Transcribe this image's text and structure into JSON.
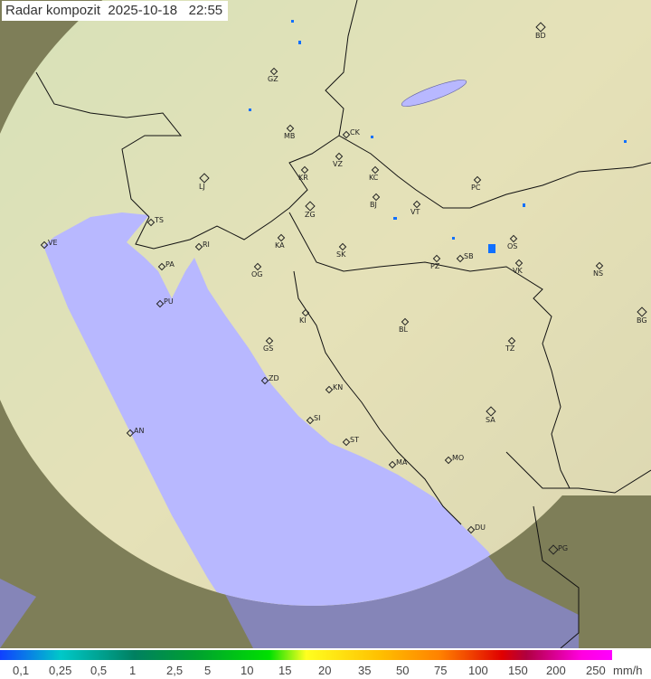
{
  "title": "Radar kompozit  2025-10-18   22:55",
  "colors": {
    "sea_in": "#b8b8ff",
    "sea_out": "#8585b8",
    "land_in": "#e6edc0",
    "land_out": "#8a8a60"
  },
  "cities": [
    {
      "code": "BD",
      "capital": true
    },
    {
      "code": "GZ"
    },
    {
      "code": "MB"
    },
    {
      "code": "CK"
    },
    {
      "code": "VZ"
    },
    {
      "code": "KR"
    },
    {
      "code": "KC"
    },
    {
      "code": "LJ",
      "capital": true
    },
    {
      "code": "PC"
    },
    {
      "code": "BJ"
    },
    {
      "code": "VT"
    },
    {
      "code": "ZG",
      "capital": true
    },
    {
      "code": "TS"
    },
    {
      "code": "VE"
    },
    {
      "code": "RI"
    },
    {
      "code": "KA"
    },
    {
      "code": "SK"
    },
    {
      "code": "OS"
    },
    {
      "code": "PZ"
    },
    {
      "code": "SB"
    },
    {
      "code": "VK"
    },
    {
      "code": "NS"
    },
    {
      "code": "PA"
    },
    {
      "code": "OG"
    },
    {
      "code": "PU"
    },
    {
      "code": "KI"
    },
    {
      "code": "BG",
      "capital": true
    },
    {
      "code": "BL"
    },
    {
      "code": "GS"
    },
    {
      "code": "TZ"
    },
    {
      "code": "ZD"
    },
    {
      "code": "KN"
    },
    {
      "code": "SA",
      "capital": true
    },
    {
      "code": "SI"
    },
    {
      "code": "AN"
    },
    {
      "code": "ST"
    },
    {
      "code": "MO"
    },
    {
      "code": "MA"
    },
    {
      "code": "DU"
    },
    {
      "code": "PG",
      "capital": true
    }
  ],
  "legend": {
    "ticks": [
      "0,1",
      "0,25",
      "0,5",
      "1",
      "2,5",
      "5",
      "10",
      "15",
      "20",
      "35",
      "50",
      "75",
      "100",
      "150",
      "200",
      "250"
    ],
    "unit": "mm/h"
  }
}
